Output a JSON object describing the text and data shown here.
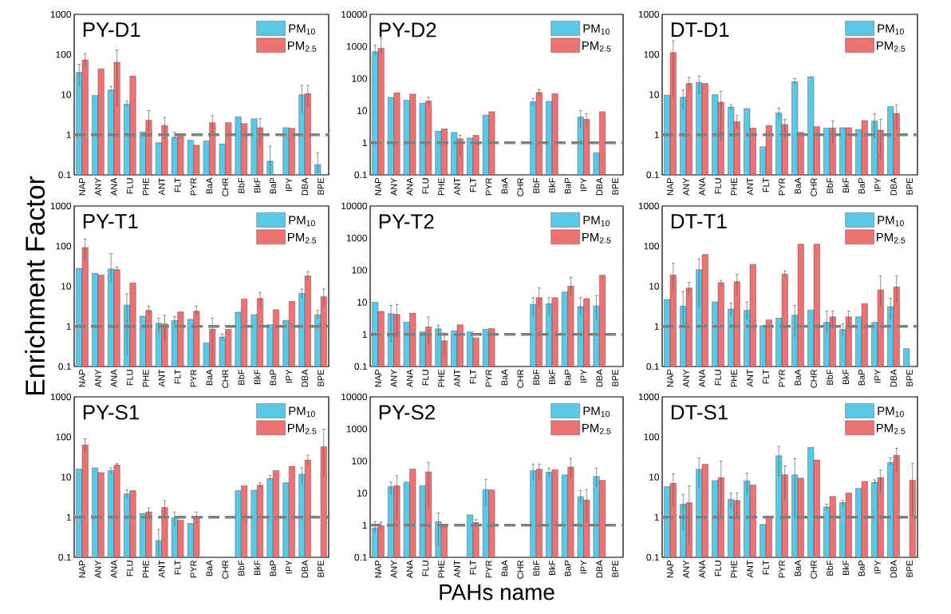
{
  "chart_data": [
    {
      "type": "bar",
      "title": "PY-D1",
      "categories": [
        "NAP",
        "ANY",
        "ANA",
        "FLU",
        "PHE",
        "ANT",
        "FLT",
        "PYR",
        "BaA",
        "CHR",
        "BbF",
        "BkF",
        "BaP",
        "IPY",
        "DBA",
        "BPE"
      ],
      "log": "y",
      "ylim": [
        0.1,
        1000
      ],
      "yticks": [
        0.1,
        1,
        10,
        100,
        1000
      ],
      "legend": "top right",
      "ref_lines": [
        {
          "axis": "y",
          "value": 1,
          "color": "#808080",
          "line_style": "dashed"
        }
      ],
      "series": [
        {
          "name": "PM$_{10}$",
          "color": "#5bc8e8",
          "values": [
            36,
            9.5,
            13,
            5.8,
            1.17,
            0.64,
            0.87,
            0.73,
            0.7,
            0.59,
            2.8,
            2.5,
            0.22,
            1.5,
            9.9,
            0.18
          ],
          "errors": [
            [
              16,
              57
            ],
            null,
            [
              12,
              16
            ],
            [
              5,
              7
            ],
            null,
            null,
            [
              0.75,
              1.15
            ],
            null,
            null,
            null,
            null,
            null,
            [
              0.1,
              0.52
            ],
            null,
            [
              3.5,
              17
            ],
            [
              0.1,
              0.36
            ]
          ]
        },
        {
          "name": "PM$_{2.5}$",
          "color": "#ec7373",
          "values": [
            73,
            44,
            64,
            29,
            2.3,
            1.7,
            0.92,
            0.55,
            2.0,
            2.0,
            1.9,
            1.5,
            null,
            1.45,
            10.6,
            null
          ],
          "errors": [
            [
              50,
              105
            ],
            null,
            [
              5,
              130
            ],
            null,
            [
              1.2,
              4
            ],
            [
              0.8,
              2.7
            ],
            null,
            null,
            [
              1,
              3
            ],
            null,
            null,
            [
              0.5,
              2.5
            ],
            null,
            null,
            [
              5,
              17
            ],
            null
          ]
        }
      ]
    },
    {
      "type": "bar",
      "title": "PY-D2",
      "categories": [
        "NAP",
        "ANY",
        "ANA",
        "FLU",
        "PHE",
        "ANT",
        "FLT",
        "PYR",
        "BaA",
        "CHR",
        "BbF",
        "BkF",
        "BaP",
        "IPY",
        "DBA",
        "BPE"
      ],
      "log": "y",
      "ylim": [
        0.1,
        10000
      ],
      "yticks": [
        0.1,
        1,
        10,
        100,
        1000,
        10000
      ],
      "legend": "top right",
      "ref_lines": [
        {
          "axis": "y",
          "value": 1,
          "color": "#808080",
          "line_style": "dashed"
        }
      ],
      "series": [
        {
          "name": "PM$_{10}$",
          "color": "#5bc8e8",
          "values": [
            690,
            26,
            21,
            17,
            2.3,
            2.1,
            1.4,
            7.3,
            null,
            null,
            19,
            19.5,
            null,
            6.3,
            0.49,
            null
          ],
          "errors": [
            [
              500,
              1100
            ],
            null,
            null,
            null,
            null,
            null,
            null,
            null,
            null,
            null,
            [
              15,
              24
            ],
            null,
            null,
            [
              3,
              10
            ],
            null,
            null
          ]
        },
        {
          "name": "PM$_{2.5}$",
          "color": "#ec7373",
          "values": [
            880,
            36,
            33,
            20,
            2.7,
            1.33,
            1.7,
            9.3,
            null,
            null,
            37,
            34,
            null,
            5.4,
            9.3,
            null
          ],
          "errors": [
            [
              600,
              1800
            ],
            null,
            null,
            [
              14,
              26
            ],
            null,
            [
              0.37,
              1.7
            ],
            null,
            null,
            null,
            null,
            [
              30,
              45
            ],
            null,
            null,
            [
              3,
              8
            ],
            null,
            null
          ]
        }
      ]
    },
    {
      "type": "bar",
      "title": "DT-D1",
      "categories": [
        "NAP",
        "ANY",
        "ANA",
        "FLU",
        "PHE",
        "ANT",
        "FLT",
        "PYR",
        "BaA",
        "CHR",
        "BbF",
        "BkF",
        "BaP",
        "IPY",
        "DBA",
        "BPE"
      ],
      "log": "y",
      "ylim": [
        0.1,
        1000
      ],
      "yticks": [
        0.1,
        1,
        10,
        100,
        1000
      ],
      "legend": "top right",
      "ref_lines": [
        {
          "axis": "y",
          "value": 1,
          "color": "#808080",
          "line_style": "dashed"
        }
      ],
      "series": [
        {
          "name": "PM$_{10}$",
          "color": "#5bc8e8",
          "values": [
            9.7,
            8.6,
            20,
            10,
            4.9,
            4.5,
            0.5,
            3.5,
            21,
            28,
            1.47,
            1.5,
            1.35,
            2.2,
            5.0,
            null
          ],
          "errors": [
            null,
            [
              4,
              13
            ],
            [
              10,
              29
            ],
            null,
            [
              4.2,
              5.6
            ],
            null,
            null,
            [
              2.5,
              4.6
            ],
            [
              18,
              25
            ],
            null,
            null,
            null,
            null,
            [
              0.8,
              3.3
            ],
            null,
            null
          ]
        },
        {
          "name": "PM$_{2.5}$",
          "color": "#ec7373",
          "values": [
            112,
            19,
            19,
            6.5,
            2.1,
            1.47,
            1.7,
            1.8,
            1.15,
            1.6,
            1.47,
            1.5,
            2.25,
            1.3,
            3.4,
            null
          ],
          "errors": [
            [
              8,
              220
            ],
            [
              14,
              27
            ],
            null,
            [
              0.7,
              12
            ],
            [
              1.4,
              3
            ],
            null,
            null,
            [
              1.1,
              2.4
            ],
            null,
            null,
            [
              0.6,
              2.2
            ],
            null,
            null,
            [
              0.25,
              2.4
            ],
            [
              1.3,
              5.5
            ],
            null
          ]
        }
      ]
    },
    {
      "type": "bar",
      "title": "PY-T1",
      "ylabel": "Enrichment Factor",
      "categories": [
        "NAP",
        "ANY",
        "ANA",
        "FLU",
        "PHE",
        "ANT",
        "FLT",
        "PYR",
        "BaA",
        "CHR",
        "BbF",
        "BkF",
        "BaP",
        "IPY",
        "DBA",
        "BPE"
      ],
      "log": "y",
      "ylim": [
        0.1,
        1000
      ],
      "yticks": [
        0.1,
        1,
        10,
        100,
        1000
      ],
      "legend": "top right",
      "ref_lines": [
        {
          "axis": "y",
          "value": 1,
          "color": "#808080",
          "line_style": "dashed"
        }
      ],
      "series": [
        {
          "name": "PM$_{10}$",
          "color": "#5bc8e8",
          "values": [
            28,
            21,
            27,
            3.4,
            1.8,
            1.2,
            1.4,
            1.5,
            0.39,
            0.54,
            2.25,
            1.95,
            1.1,
            1.42,
            6.6,
            1.95
          ],
          "errors": [
            null,
            null,
            [
              12,
              65
            ],
            [
              0.19,
              6.5
            ],
            null,
            [
              0.7,
              1.6
            ],
            [
              1.1,
              1.75
            ],
            null,
            null,
            [
              0.45,
              0.64
            ],
            null,
            null,
            null,
            null,
            [
              5,
              8.5
            ],
            [
              1.5,
              2.5
            ]
          ]
        },
        {
          "name": "PM$_{2.5}$",
          "color": "#ec7373",
          "values": [
            92,
            19,
            26,
            12,
            2.5,
            1.15,
            2.3,
            2.4,
            0.85,
            0.84,
            4.8,
            5.0,
            2.6,
            4.2,
            18,
            5.5
          ],
          "errors": [
            [
              40,
              150
            ],
            null,
            [
              24,
              30
            ],
            null,
            [
              2,
              3.2
            ],
            [
              0.4,
              1.9
            ],
            null,
            [
              1.8,
              3.2
            ],
            [
              0.1,
              1.6
            ],
            null,
            null,
            [
              3,
              7
            ],
            null,
            null,
            [
              14,
              23
            ],
            [
              3,
              8.5
            ]
          ]
        }
      ]
    },
    {
      "type": "bar",
      "title": "PY-T2",
      "categories": [
        "NAP",
        "ANY",
        "ANA",
        "FLU",
        "PHE",
        "ANT",
        "FLT",
        "PYR",
        "BaA",
        "CHR",
        "BbF",
        "BkF",
        "BaP",
        "IPY",
        "DBA",
        "BPE"
      ],
      "log": "y",
      "ylim": [
        0.1,
        10000
      ],
      "yticks": [
        0.1,
        1,
        10,
        100,
        1000,
        10000
      ],
      "legend": "top right",
      "ref_lines": [
        {
          "axis": "y",
          "value": 1,
          "color": "#808080",
          "line_style": "dashed"
        }
      ],
      "series": [
        {
          "name": "PM$_{10}$",
          "color": "#5bc8e8",
          "values": [
            10,
            4.4,
            2.4,
            1.2,
            1.5,
            1.3,
            1.2,
            1.45,
            null,
            null,
            8.6,
            9,
            21,
            7.4,
            7.7,
            null
          ],
          "errors": [
            null,
            [
              0.55,
              8
            ],
            null,
            null,
            [
              1.1,
              1.9
            ],
            null,
            null,
            null,
            null,
            null,
            [
              3.5,
              14
            ],
            [
              4,
              14
            ],
            null,
            [
              4,
              14
            ],
            [
              3,
              16
            ],
            null
          ]
        },
        {
          "name": "PM$_{2.5}$",
          "color": "#ec7373",
          "values": [
            5.2,
            4.2,
            4.6,
            1.7,
            0.63,
            2.0,
            0.78,
            1.52,
            null,
            null,
            14,
            14,
            32,
            13,
            70,
            null
          ],
          "errors": [
            null,
            [
              0.8,
              8.5
            ],
            null,
            [
              0.5,
              3.5
            ],
            [
              0.2,
              1.1
            ],
            null,
            null,
            null,
            null,
            null,
            [
              7,
              28
            ],
            null,
            [
              16,
              60
            ],
            null,
            null,
            null
          ]
        }
      ]
    },
    {
      "type": "bar",
      "title": "DT-T1",
      "categories": [
        "NAP",
        "ANY",
        "ANA",
        "FLU",
        "PHE",
        "ANT",
        "FLT",
        "PYR",
        "BaA",
        "CHR",
        "BbF",
        "BkF",
        "BaP",
        "IPY",
        "DBA",
        "BPE"
      ],
      "log": "y",
      "ylim": [
        0.1,
        1000
      ],
      "yticks": [
        0.1,
        1,
        10,
        100,
        1000
      ],
      "legend": "top right",
      "ref_lines": [
        {
          "axis": "y",
          "value": 1,
          "color": "#808080",
          "line_style": "dashed"
        }
      ],
      "series": [
        {
          "name": "PM$_{10}$",
          "color": "#5bc8e8",
          "values": [
            4.7,
            3.2,
            26,
            4.1,
            2.7,
            2.5,
            1.04,
            1.6,
            1.9,
            2.55,
            1.26,
            0.84,
            1.73,
            1.26,
            3.1,
            0.28
          ],
          "errors": [
            null,
            [
              1,
              7.4
            ],
            [
              3,
              48
            ],
            null,
            [
              1.8,
              3.8
            ],
            [
              1.5,
              4
            ],
            null,
            null,
            [
              0.55,
              3.3
            ],
            null,
            [
              0.7,
              2.4
            ],
            [
              0.6,
              1.15
            ],
            null,
            null,
            [
              1.5,
              5
            ],
            null
          ]
        },
        {
          "name": "PM$_{2.5}$",
          "color": "#ec7373",
          "values": [
            19,
            9,
            62,
            12.3,
            13,
            35,
            1.45,
            20,
            112,
            112,
            1.73,
            1.73,
            3.7,
            8.1,
            9.6,
            null
          ],
          "errors": [
            [
              8,
              37
            ],
            [
              6,
              12.5
            ],
            null,
            [
              10,
              14
            ],
            [
              6,
              20
            ],
            null,
            null,
            [
              17,
              24
            ],
            null,
            null,
            [
              1.1,
              2.4
            ],
            [
              1.1,
              2.4
            ],
            null,
            [
              3,
              18
            ],
            [
              4,
              18
            ],
            null
          ]
        }
      ]
    },
    {
      "type": "bar",
      "title": "PY-S1",
      "categories": [
        "NAP",
        "ANY",
        "ANA",
        "FLU",
        "PHE",
        "ANT",
        "FLT",
        "PYR",
        "BaA",
        "CHR",
        "BbF",
        "BkF",
        "BaP",
        "IPY",
        "DBA",
        "BPE"
      ],
      "log": "y",
      "ylim": [
        0.1,
        1000
      ],
      "yticks": [
        0.1,
        1,
        10,
        100,
        1000
      ],
      "legend": "top right",
      "ref_lines": [
        {
          "axis": "y",
          "value": 1,
          "color": "#808080",
          "line_style": "dashed"
        }
      ],
      "series": [
        {
          "name": "PM$_{10}$",
          "color": "#5bc8e8",
          "values": [
            16,
            17,
            14.5,
            3.8,
            1.24,
            0.26,
            0.97,
            0.7,
            null,
            null,
            4.6,
            4.7,
            9.2,
            7.2,
            11.8,
            null
          ],
          "errors": [
            null,
            null,
            [
              12,
              17
            ],
            [
              3,
              4.8
            ],
            null,
            [
              0.1,
              0.5
            ],
            [
              0.6,
              1.35
            ],
            null,
            null,
            null,
            null,
            null,
            [
              8,
              11
            ],
            null,
            [
              7,
              17
            ],
            null
          ]
        },
        {
          "name": "PM$_{2.5}$",
          "color": "#ec7373",
          "values": [
            63,
            13,
            20,
            4.6,
            1.35,
            1.76,
            0.84,
            0.95,
            null,
            null,
            6.1,
            6.3,
            14.5,
            18.6,
            26.5,
            57
          ],
          "errors": [
            [
              40,
              90
            ],
            null,
            [
              18,
              22
            ],
            null,
            [
              1,
              1.7
            ],
            [
              1.1,
              2.6
            ],
            null,
            [
              0.7,
              1.35
            ],
            null,
            null,
            null,
            [
              5.5,
              7.2
            ],
            null,
            null,
            [
              20,
              35
            ],
            [
              10,
              155
            ]
          ]
        }
      ]
    },
    {
      "type": "bar",
      "title": "PY-S2",
      "xlabel": "PAHs name",
      "categories": [
        "NAP",
        "ANY",
        "ANA",
        "FLU",
        "PHE",
        "ANT",
        "FLT",
        "PYR",
        "BaA",
        "CHR",
        "BbF",
        "BkF",
        "BaP",
        "IPY",
        "DBA",
        "BPE"
      ],
      "log": "y",
      "ylim": [
        0.1,
        10000
      ],
      "yticks": [
        0.1,
        1,
        10,
        100,
        1000,
        10000
      ],
      "legend": "top right",
      "ref_lines": [
        {
          "axis": "y",
          "value": 1,
          "color": "#808080",
          "line_style": "dashed"
        }
      ],
      "series": [
        {
          "name": "PM$_{10}$",
          "color": "#5bc8e8",
          "values": [
            0.82,
            16,
            22,
            17,
            1.3,
            null,
            2.1,
            12.9,
            null,
            null,
            50,
            45,
            37,
            7.7,
            33,
            null
          ],
          "errors": [
            [
              0.6,
              1.3
            ],
            [
              9,
              22
            ],
            null,
            null,
            [
              0.22,
              2.4
            ],
            null,
            null,
            [
              4,
              27
            ],
            null,
            null,
            [
              25,
              80
            ],
            [
              30,
              60
            ],
            null,
            [
              5,
              12
            ],
            [
              15,
              60
            ],
            null
          ]
        },
        {
          "name": "PM$_{2.5}$",
          "color": "#ec7373",
          "values": [
            0.96,
            17,
            56,
            46,
            0.94,
            null,
            1.2,
            12.6,
            null,
            null,
            56,
            54,
            65,
            6.1,
            25,
            null
          ],
          "errors": [
            [
              0.7,
              1.25
            ],
            [
              1.5,
              35
            ],
            null,
            [
              3.5,
              90
            ],
            null,
            null,
            [
              1,
              1.5
            ],
            null,
            null,
            null,
            [
              25,
              80
            ],
            null,
            [
              30,
              120
            ],
            [
              1.2,
              13
            ],
            null,
            null
          ]
        }
      ]
    },
    {
      "type": "bar",
      "title": "DT-S1",
      "categories": [
        "NAP",
        "ANY",
        "ANA",
        "FLU",
        "PHE",
        "ANT",
        "FLT",
        "PYR",
        "BaA",
        "CHR",
        "BbF",
        "BkF",
        "BaP",
        "IPY",
        "DBA",
        "BPE"
      ],
      "log": "y",
      "ylim": [
        0.1,
        1000
      ],
      "yticks": [
        0.1,
        1,
        10,
        100,
        1000
      ],
      "legend": "top right",
      "ref_lines": [
        {
          "axis": "y",
          "value": 1,
          "color": "#808080",
          "line_style": "dashed"
        }
      ],
      "series": [
        {
          "name": "PM$_{10}$",
          "color": "#5bc8e8",
          "values": [
            5.8,
            2.1,
            15.7,
            8.1,
            2.8,
            8,
            0.66,
            34,
            11.4,
            55,
            1.8,
            2.3,
            5.2,
            7.4,
            23,
            null
          ],
          "errors": [
            null,
            [
              0.47,
              3.7
            ],
            [
              5,
              30
            ],
            null,
            [
              1.7,
              4
            ],
            [
              3.5,
              12.5
            ],
            null,
            [
              10,
              58
            ],
            [
              1,
              29
            ],
            null,
            [
              1.5,
              2.1
            ],
            [
              1.8,
              2.6
            ],
            null,
            [
              6.5,
              8.5
            ],
            [
              20,
              30
            ],
            null
          ]
        },
        {
          "name": "PM$_{2.5}$",
          "color": "#ec7373",
          "values": [
            7,
            2.3,
            21,
            9.7,
            2.6,
            6.3,
            1.0,
            11.4,
            9.4,
            26.7,
            3.3,
            4.0,
            7.8,
            9.7,
            35,
            8.3
          ],
          "errors": [
            [
              1.9,
              12
            ],
            [
              0.2,
              6
            ],
            null,
            [
              1,
              25
            ],
            [
              1,
              4
            ],
            null,
            null,
            [
              2.6,
              19
            ],
            null,
            null,
            null,
            null,
            null,
            [
              4,
              15
            ],
            [
              13,
              52
            ],
            [
              1,
              22
            ]
          ]
        }
      ]
    }
  ]
}
